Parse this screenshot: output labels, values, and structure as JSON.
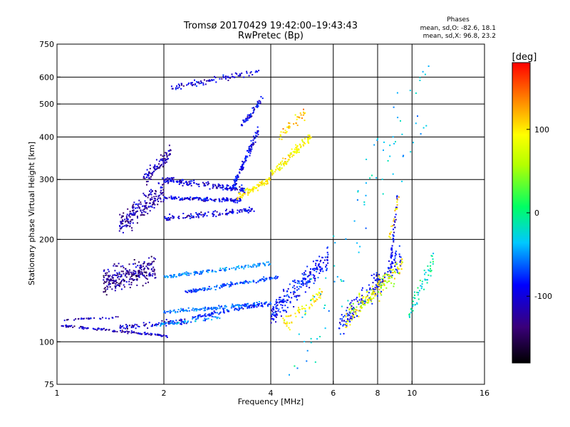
{
  "title_line1": "Tromsø 20170429 19:42:00–19:43:43",
  "title_line2": "RwPretec (Bp)",
  "stats": {
    "heading": "Phases",
    "line_o": "mean, sd,O: -82.6, 18.1",
    "line_x": "mean, sd,X:  96.8, 23.2"
  },
  "colorbar": {
    "unit_label": "[deg]",
    "ticks": [
      100,
      0,
      -100
    ],
    "range": [
      -180,
      180
    ]
  },
  "chart_data": {
    "type": "scatter",
    "xlabel": "Frequency [MHz]",
    "ylabel": "Stationary phase Virtual Height [km]",
    "x_scale": "log",
    "y_scale": "log",
    "xlim": [
      1,
      16
    ],
    "ylim": [
      75,
      750
    ],
    "x_ticks": [
      1,
      2,
      4,
      6,
      8,
      10,
      16
    ],
    "y_ticks": [
      75,
      100,
      200,
      300,
      400,
      500,
      600,
      750
    ],
    "x_gridlines": [
      2,
      4,
      6,
      8,
      10
    ],
    "y_gridlines": [
      100,
      200,
      300,
      400,
      500,
      600
    ],
    "grid": true,
    "color_variable": "phase [deg]",
    "traces": [
      {
        "x_range": [
          1.0,
          2.05
        ],
        "y_start": 112,
        "y_end": 104,
        "phase": -120,
        "spread": 0.012,
        "n": 110
      },
      {
        "x_range": [
          1.05,
          1.5
        ],
        "y_start": 116,
        "y_end": 118,
        "phase": -120,
        "spread": 0.01,
        "n": 30
      },
      {
        "x_range": [
          1.35,
          1.9
        ],
        "y_start": 150,
        "y_end": 165,
        "phase": -130,
        "spread": 0.12,
        "n": 260
      },
      {
        "x_range": [
          1.5,
          2.0
        ],
        "y_start": 220,
        "y_end": 280,
        "phase": -125,
        "spread": 0.12,
        "n": 200
      },
      {
        "x_range": [
          1.75,
          2.1
        ],
        "y_start": 300,
        "y_end": 360,
        "phase": -125,
        "spread": 0.08,
        "n": 90
      },
      {
        "x_range": [
          2.0,
          3.4
        ],
        "y_start": 300,
        "y_end": 280,
        "phase": -110,
        "spread": 0.03,
        "n": 160
      },
      {
        "x_range": [
          2.0,
          3.3
        ],
        "y_start": 265,
        "y_end": 260,
        "phase": -105,
        "spread": 0.02,
        "n": 140
      },
      {
        "x_range": [
          2.0,
          3.6
        ],
        "y_start": 230,
        "y_end": 245,
        "phase": -110,
        "spread": 0.03,
        "n": 120
      },
      {
        "x_range": [
          3.1,
          3.7
        ],
        "y_start": 280,
        "y_end": 420,
        "phase": -105,
        "spread": 0.05,
        "n": 120
      },
      {
        "x_range": [
          3.3,
          3.8
        ],
        "y_start": 430,
        "y_end": 520,
        "phase": -100,
        "spread": 0.04,
        "n": 50
      },
      {
        "x_range": [
          2.1,
          3.7
        ],
        "y_start": 560,
        "y_end": 620,
        "phase": -110,
        "spread": 0.03,
        "n": 90
      },
      {
        "x_range": [
          3.2,
          4.0
        ],
        "y_start": 265,
        "y_end": 300,
        "phase": 100,
        "spread": 0.03,
        "n": 80
      },
      {
        "x_range": [
          4.0,
          5.2
        ],
        "y_start": 310,
        "y_end": 400,
        "phase": 95,
        "spread": 0.05,
        "n": 110
      },
      {
        "x_range": [
          4.2,
          5.0
        ],
        "y_start": 400,
        "y_end": 470,
        "phase": 110,
        "spread": 0.06,
        "n": 40
      },
      {
        "x_range": [
          2.0,
          4.0
        ],
        "y_start": 155,
        "y_end": 170,
        "phase": -60,
        "spread": 0.02,
        "n": 130
      },
      {
        "x_range": [
          2.3,
          4.2
        ],
        "y_start": 140,
        "y_end": 155,
        "phase": -80,
        "spread": 0.02,
        "n": 130
      },
      {
        "x_range": [
          2.0,
          3.9
        ],
        "y_start": 122,
        "y_end": 130,
        "phase": -70,
        "spread": 0.02,
        "n": 130
      },
      {
        "x_range": [
          2.4,
          4.4
        ],
        "y_start": 118,
        "y_end": 132,
        "phase": -90,
        "spread": 0.02,
        "n": 110
      },
      {
        "x_range": [
          1.5,
          2.4
        ],
        "y_start": 110,
        "y_end": 115,
        "phase": -115,
        "spread": 0.03,
        "n": 70
      },
      {
        "x_range": [
          1.9,
          2.9
        ],
        "y_start": 112,
        "y_end": 118,
        "phase": -60,
        "spread": 0.02,
        "n": 60
      },
      {
        "x_range": [
          4.0,
          5.8
        ],
        "y_start": 120,
        "y_end": 175,
        "phase": -95,
        "spread": 0.12,
        "n": 220
      },
      {
        "x_range": [
          4.3,
          5.6
        ],
        "y_start": 112,
        "y_end": 140,
        "phase": 95,
        "spread": 0.08,
        "n": 60
      },
      {
        "x_range": [
          6.2,
          9.3
        ],
        "y_start": 110,
        "y_end": 180,
        "phase": -100,
        "spread": 0.12,
        "n": 180
      },
      {
        "x_range": [
          6.5,
          9.4
        ],
        "y_start": 115,
        "y_end": 170,
        "phase": 100,
        "spread": 0.1,
        "n": 110
      },
      {
        "x_range": [
          6.5,
          9.2
        ],
        "y_start": 120,
        "y_end": 160,
        "phase": 40,
        "spread": 0.1,
        "n": 50
      },
      {
        "x_range": [
          9.8,
          11.5
        ],
        "y_start": 120,
        "y_end": 175,
        "phase": -20,
        "spread": 0.1,
        "n": 60
      },
      {
        "x_range": [
          8.7,
          9.1
        ],
        "y_start": 170,
        "y_end": 270,
        "phase": -100,
        "spread": 0.08,
        "n": 40
      },
      {
        "x_range": [
          8.6,
          9.2
        ],
        "y_start": 200,
        "y_end": 270,
        "phase": 110,
        "spread": 0.05,
        "n": 20
      },
      {
        "x_range": [
          4.5,
          11.5
        ],
        "y_start": 80,
        "y_end": 620,
        "phase": -40,
        "spread": 0.5,
        "n": 90
      }
    ]
  }
}
